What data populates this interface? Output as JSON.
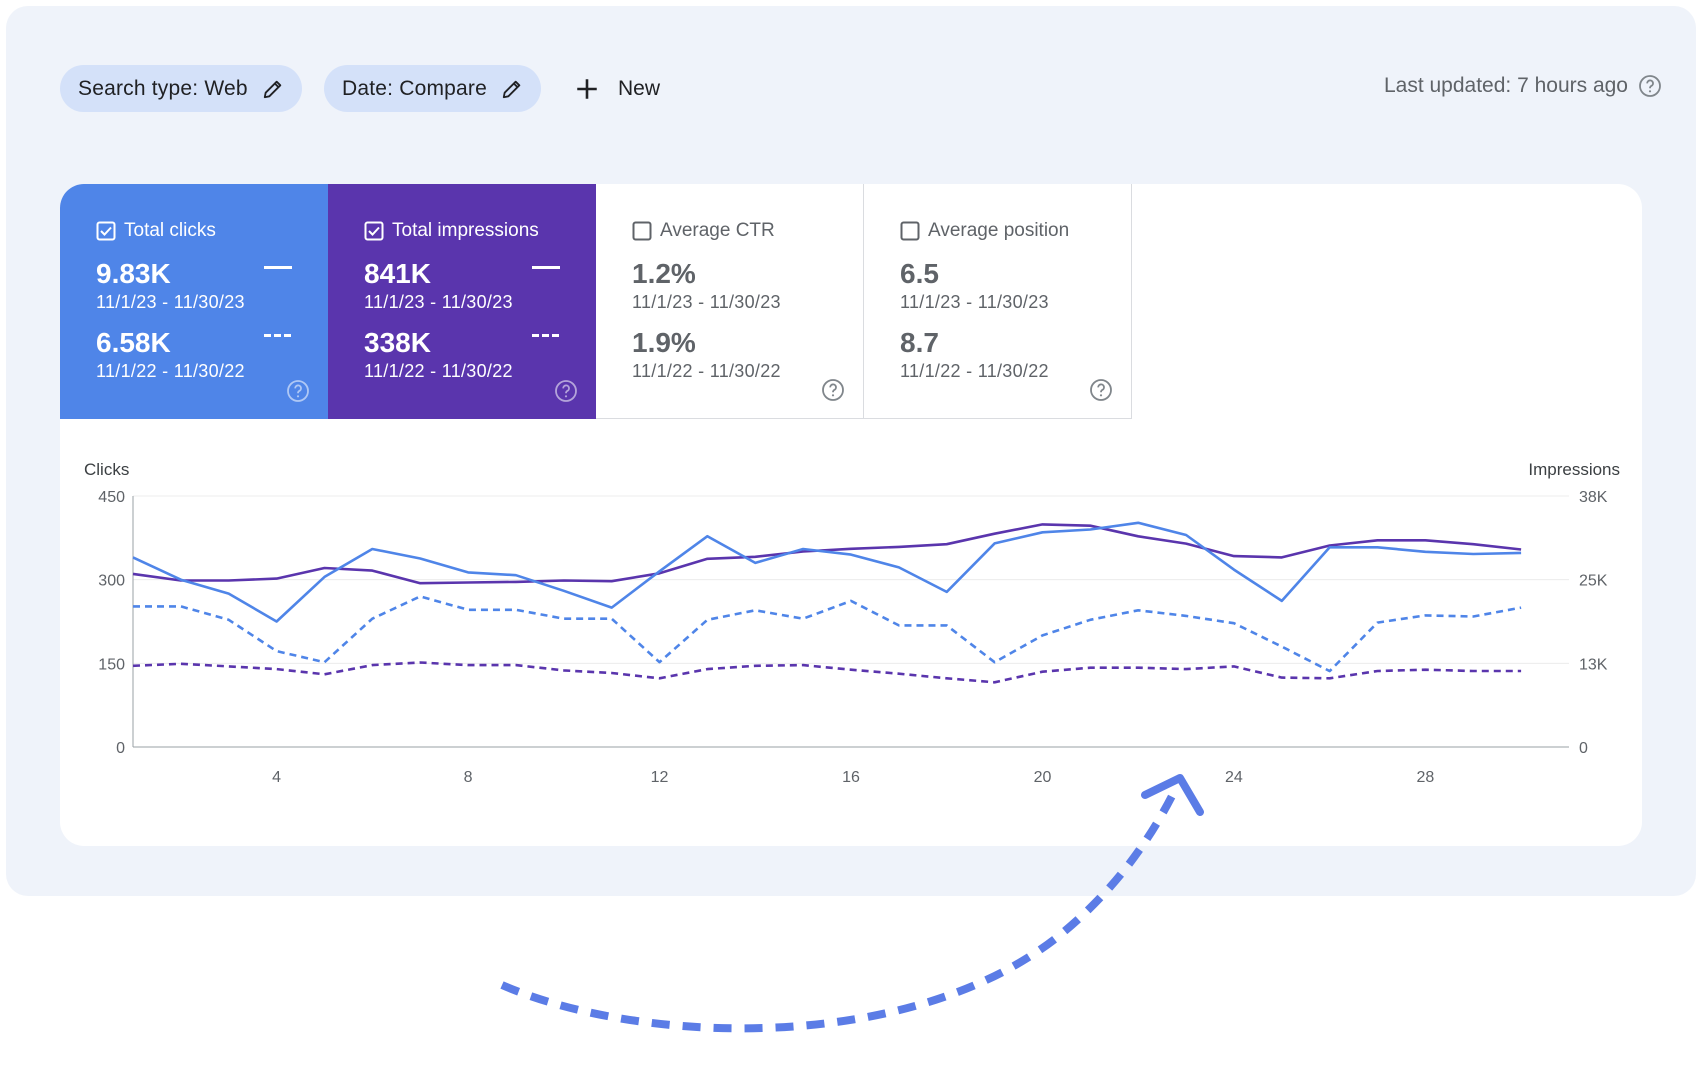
{
  "filters": {
    "search_type": "Search type: Web",
    "date": "Date: Compare",
    "new_label": "New"
  },
  "last_updated": "Last updated: 7 hours ago",
  "metrics": [
    {
      "title": "Total clicks",
      "checked": true,
      "current_value": "9.83K",
      "current_range": "11/1/23 - 11/30/23",
      "previous_value": "6.58K",
      "previous_range": "11/1/22 - 11/30/22"
    },
    {
      "title": "Total impressions",
      "checked": true,
      "current_value": "841K",
      "current_range": "11/1/23 - 11/30/23",
      "previous_value": "338K",
      "previous_range": "11/1/22 - 11/30/22"
    },
    {
      "title": "Average CTR",
      "checked": false,
      "current_value": "1.2%",
      "current_range": "11/1/23 - 11/30/23",
      "previous_value": "1.9%",
      "previous_range": "11/1/22 - 11/30/22"
    },
    {
      "title": "Average position",
      "checked": false,
      "current_value": "6.5",
      "current_range": "11/1/23 - 11/30/23",
      "previous_value": "8.7",
      "previous_range": "11/1/22 - 11/30/22"
    }
  ],
  "colors": {
    "clicks": "#4f85e8",
    "impressions": "#5a35ad",
    "panel_bg": "#eff3fa",
    "chip_bg": "#d4e1f9",
    "arrow": "#5b7ce6"
  },
  "chart_data": {
    "type": "line",
    "xlabel": "",
    "ylabel_left": "Clicks",
    "ylabel_right": "Impressions",
    "y_left_ticks": [
      "0",
      "150",
      "300",
      "450"
    ],
    "y_right_ticks": [
      "0",
      "13K",
      "25K",
      "38K"
    ],
    "ylim_left": [
      0,
      450
    ],
    "ylim_right": [
      0,
      38000
    ],
    "x_ticks": [
      4,
      8,
      12,
      16,
      20,
      24,
      28
    ],
    "x_tick_labels": [
      "4",
      "8",
      "12",
      "16",
      "20",
      "24",
      "28"
    ],
    "x": [
      1,
      2,
      3,
      4,
      5,
      6,
      7,
      8,
      9,
      10,
      11,
      12,
      13,
      14,
      15,
      16,
      17,
      18,
      19,
      20,
      21,
      22,
      23,
      24,
      25,
      26,
      27,
      28,
      29,
      30
    ],
    "series": [
      {
        "axis": "left",
        "style": "solid",
        "color": "#4f85e8",
        "values": [
          340,
          300,
          275,
          225,
          305,
          355,
          338,
          313,
          308,
          280,
          250,
          315,
          378,
          330,
          355,
          345,
          322,
          278,
          365,
          385,
          390,
          402,
          380,
          318,
          262,
          358,
          358,
          350,
          346,
          348
        ]
      },
      {
        "axis": "right",
        "style": "solid",
        "color": "#5a35ad",
        "values": [
          26200,
          25200,
          25200,
          25500,
          27100,
          26700,
          24800,
          24900,
          25000,
          25200,
          25100,
          26300,
          28500,
          28800,
          29600,
          30000,
          30300,
          30700,
          32300,
          33700,
          33500,
          31900,
          30800,
          28900,
          28700,
          30500,
          31300,
          31300,
          30700,
          29900
        ]
      },
      {
        "axis": "left",
        "style": "dashed",
        "color": "#4f85e8",
        "values": [
          252,
          252,
          228,
          172,
          152,
          230,
          270,
          246,
          246,
          230,
          230,
          152,
          228,
          245,
          230,
          262,
          218,
          218,
          152,
          200,
          228,
          245,
          235,
          222,
          180,
          136,
          223,
          236,
          234,
          250
        ]
      },
      {
        "axis": "right",
        "style": "dashed",
        "color": "#5a35ad",
        "values": [
          12300,
          12600,
          12200,
          11800,
          11000,
          12400,
          12800,
          12400,
          12400,
          11600,
          11200,
          10400,
          11800,
          12300,
          12400,
          11700,
          11100,
          10400,
          9800,
          11400,
          12000,
          12000,
          11800,
          12200,
          10500,
          10400,
          11500,
          11700,
          11500,
          11500
        ]
      }
    ]
  }
}
